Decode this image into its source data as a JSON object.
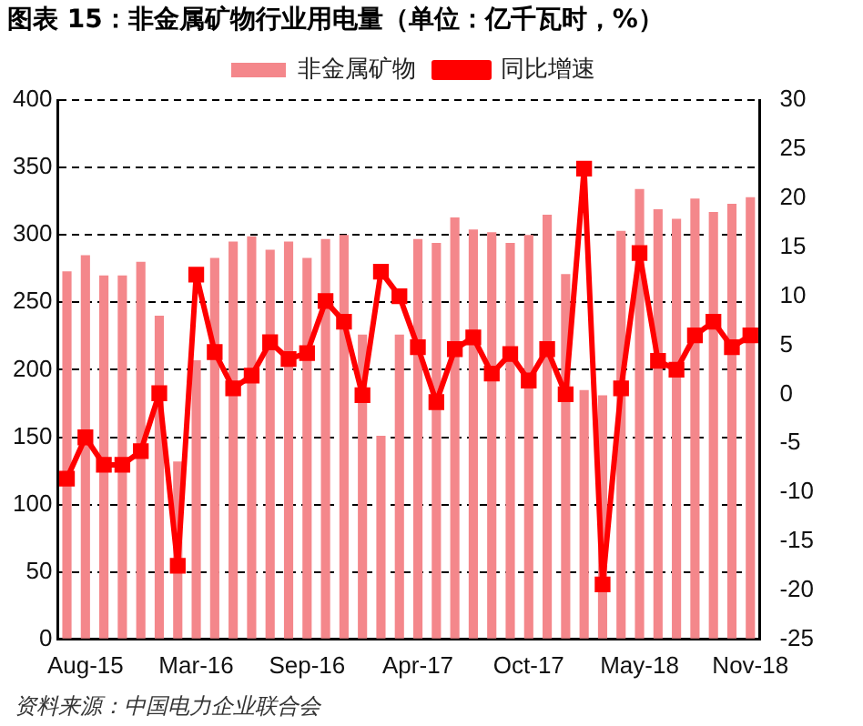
{
  "chart_data": {
    "type": "bar",
    "title": "图表 15：非金属矿物行业用电量（单位：亿千瓦时，%）",
    "categories": [
      null,
      "Aug-15",
      null,
      null,
      null,
      null,
      null,
      "Mar-16",
      null,
      null,
      null,
      null,
      null,
      "Sep-16",
      null,
      null,
      null,
      null,
      null,
      "Apr-17",
      null,
      null,
      null,
      null,
      null,
      "Oct-17",
      null,
      null,
      null,
      null,
      null,
      "May-18",
      null,
      null,
      null,
      null,
      null,
      "Nov-18"
    ],
    "series": [
      {
        "name": "非金属矿物",
        "color": "#f4878b",
        "values": [
          273,
          285,
          270,
          270,
          280,
          240,
          132,
          207,
          283,
          295,
          299,
          289,
          295,
          283,
          297,
          300,
          226,
          151,
          226,
          297,
          294,
          313,
          304,
          302,
          294,
          300,
          315,
          271,
          185,
          181,
          303,
          334,
          319,
          312,
          327,
          317,
          323,
          328
        ]
      },
      {
        "name": "同比增速",
        "type": "line",
        "axis": "y2",
        "color": "#ff0000",
        "values": [
          -8.6,
          -4.4,
          -7.2,
          -7.2,
          -5.8,
          0.1,
          -17.5,
          12.2,
          4.3,
          0.6,
          1.9,
          5.3,
          3.6,
          4.2,
          9.5,
          7.4,
          -0.1,
          12.5,
          10.0,
          4.8,
          -0.8,
          4.6,
          5.8,
          2.1,
          4.1,
          1.4,
          4.6,
          0.0,
          23.0,
          -19.4,
          0.6,
          14.4,
          3.4,
          2.5,
          6.0,
          7.4,
          4.8,
          6.0
        ]
      }
    ],
    "ylim": [
      0,
      400
    ],
    "yticks": [
      0,
      50,
      100,
      150,
      200,
      250,
      300,
      350,
      400
    ],
    "y2lim": [
      -25,
      30
    ],
    "y2ticks": [
      -25,
      -20,
      -15,
      -10,
      -5,
      0,
      5,
      10,
      15,
      20,
      25,
      30
    ],
    "grid": "y",
    "legend": "top",
    "marker": "square",
    "line_style": "solid",
    "annotations": [
      "资料来源：中国电力企业联合会"
    ]
  }
}
